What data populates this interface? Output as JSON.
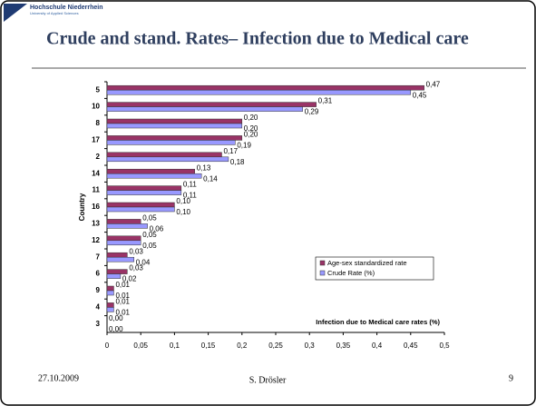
{
  "header": {
    "institution": "Hochschule Niederrhein",
    "subtitle": "University of Applied Sciences"
  },
  "chart_data": {
    "type": "hbar",
    "title": "Crude and stand. Rates– Infection due to Medical care",
    "y_label": "Country",
    "x_label": "Infection due to Medical care rates (%)",
    "categories": [
      "5",
      "10",
      "8",
      "17",
      "2",
      "14",
      "11",
      "16",
      "13",
      "12",
      "7",
      "6",
      "9",
      "4",
      "3"
    ],
    "series": [
      {
        "name": "Age-sex standardized rate",
        "color": "#993366",
        "values": [
          0.47,
          0.31,
          0.2,
          0.2,
          0.17,
          0.13,
          0.11,
          0.1,
          0.05,
          0.05,
          0.03,
          0.03,
          0.01,
          0.01,
          0.0
        ],
        "value_labels": [
          "0,47",
          "0,31",
          "0,20",
          "0,20",
          "0,17",
          "0,13",
          "0,11",
          "0,10",
          "0,05",
          "0,05",
          "0,03",
          "0,03",
          "0,01",
          "0,01",
          "0,00"
        ]
      },
      {
        "name": "Crude Rate (%)",
        "color": "#9999ff",
        "values": [
          0.45,
          0.29,
          0.2,
          0.19,
          0.18,
          0.14,
          0.11,
          0.1,
          0.06,
          0.05,
          0.04,
          0.02,
          0.01,
          0.01,
          0.0
        ],
        "value_labels": [
          "0,45",
          "0,29",
          "0,20",
          "0,19",
          "0,18",
          "0,14",
          "0,11",
          "0,10",
          "0,06",
          "0,05",
          "0,04",
          "0,02",
          "0,01",
          "0,01",
          "0,00"
        ]
      }
    ],
    "xlim": [
      0,
      0.5
    ],
    "xticks": [
      0,
      {
        "value": 0.05,
        "label": "0,05"
      },
      {
        "value": 0.1,
        "label": "0,1"
      },
      {
        "value": 0.15,
        "label": "0,15"
      },
      {
        "value": 0.2,
        "label": "0,2"
      },
      {
        "value": 0.25,
        "label": "0,25"
      },
      {
        "value": 0.3,
        "label": "0,3"
      },
      {
        "value": 0.35,
        "label": "0,35"
      },
      {
        "value": 0.4,
        "label": "0,4"
      },
      {
        "value": 0.45,
        "label": "0,45"
      },
      {
        "value": 0.5,
        "label": "0,5"
      }
    ],
    "grid": false,
    "legend": "right"
  },
  "footer": {
    "date": "27.10.2009",
    "author": "S. Drösler",
    "page": "9"
  }
}
